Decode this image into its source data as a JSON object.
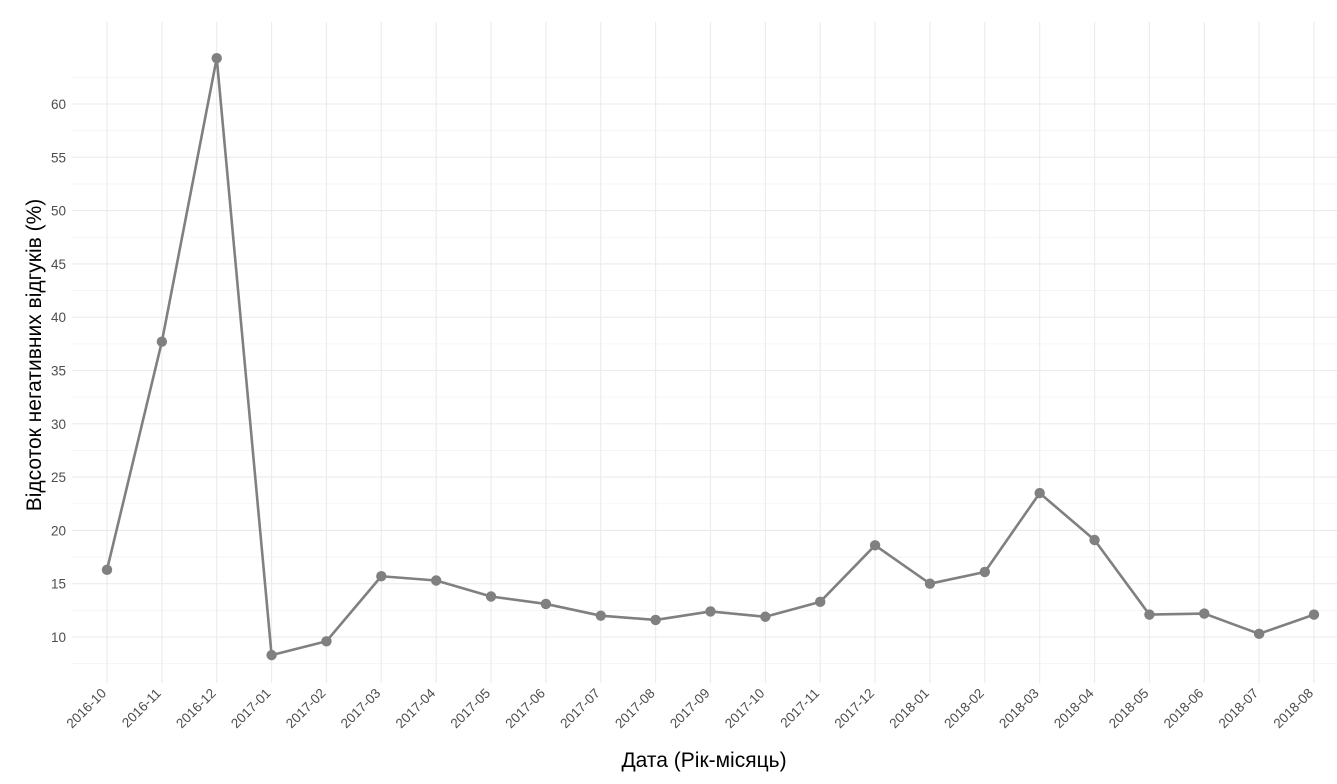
{
  "chart_data": {
    "type": "line",
    "title": "",
    "xlabel": "Дата (Рік-місяць)",
    "ylabel": "Відсоток негативних відгуків (%)",
    "categories": [
      "2016-10",
      "2016-11",
      "2016-12",
      "2017-01",
      "2017-02",
      "2017-03",
      "2017-04",
      "2017-05",
      "2017-06",
      "2017-07",
      "2017-08",
      "2017-09",
      "2017-10",
      "2017-11",
      "2017-12",
      "2018-01",
      "2018-02",
      "2018-03",
      "2018-04",
      "2018-05",
      "2018-06",
      "2018-07",
      "2018-08"
    ],
    "values": [
      16.3,
      37.7,
      64.3,
      8.3,
      9.6,
      15.7,
      15.3,
      13.8,
      13.1,
      12.0,
      11.6,
      12.4,
      11.9,
      13.3,
      18.6,
      15.0,
      16.1,
      23.5,
      19.1,
      12.1,
      12.2,
      10.3,
      12.1
    ],
    "y_ticks": [
      10,
      15,
      20,
      25,
      30,
      35,
      40,
      45,
      50,
      55,
      60
    ],
    "ylim": [
      5.5,
      67
    ],
    "grid": true,
    "legend": "none",
    "series_color": "#808080"
  }
}
